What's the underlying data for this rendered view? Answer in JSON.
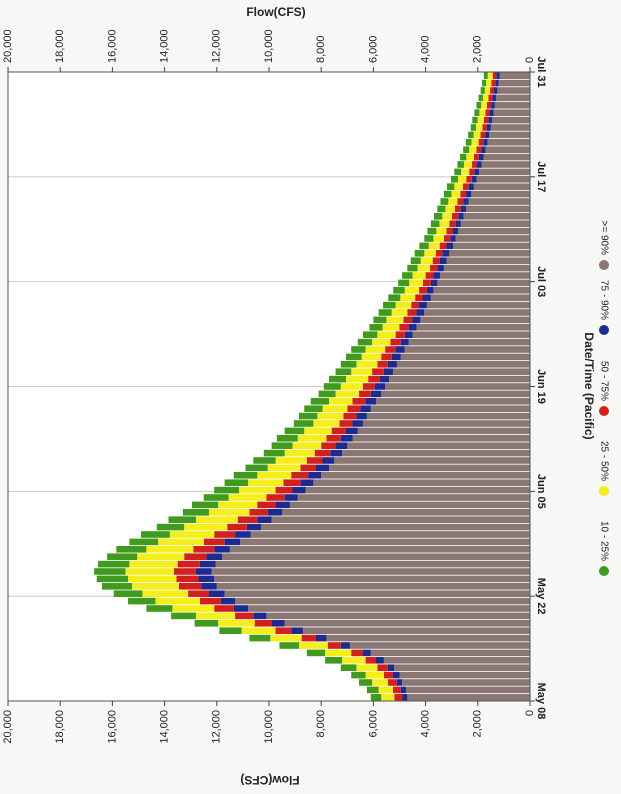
{
  "chart_data": {
    "type": "bar",
    "orientation": "rotated 90 degrees clockwise (scanned page)",
    "stacked": true,
    "title": "",
    "xlabel": "Date/Time (Pacific)",
    "ylabel": "Flow(CFS)",
    "ylabel_top": "Flow(CFS)",
    "ylim": [
      0,
      20000
    ],
    "y_ticks": [
      "0",
      "2,000",
      "4,000",
      "6,000",
      "8,000",
      "10,000",
      "12,000",
      "14,000",
      "16,000",
      "18,000",
      "20,000"
    ],
    "x_ticks": [
      "May 08",
      "May 22",
      "Jun 05",
      "Jun 19",
      "Jul 03",
      "Jul 17",
      "Jul 31"
    ],
    "grid": "vertical lines at date ticks",
    "legend_position": "bottom",
    "base_color": "#8a7672",
    "series": [
      {
        "name": ">= 90%",
        "color": "#8a7672",
        "values": [
          4700,
          4750,
          4900,
          5000,
          5200,
          5600,
          6100,
          6900,
          7800,
          8700,
          9400,
          10100,
          10800,
          11300,
          11700,
          12000,
          12100,
          12200,
          12050,
          11800,
          11500,
          11100,
          10700,
          10300,
          9900,
          9500,
          9200,
          8900,
          8600,
          8300,
          8000,
          7700,
          7500,
          7200,
          7000,
          6800,
          6600,
          6400,
          6250,
          6100,
          5900,
          5700,
          5550,
          5400,
          5250,
          5100,
          4950,
          4800,
          4650,
          4500,
          4350,
          4200,
          4050,
          3950,
          3800,
          3700,
          3550,
          3450,
          3300,
          3200,
          3100,
          2950,
          2850,
          2750,
          2650,
          2550,
          2450,
          2350,
          2250,
          2150,
          2050,
          1950,
          1850,
          1780,
          1700,
          1630,
          1560,
          1500,
          1450,
          1400,
          1350,
          1300,
          1250,
          1200,
          1160
        ]
      },
      {
        "name": "75 - 90%",
        "color": "#1f2a8f",
        "values": [
          200,
          200,
          200,
          250,
          250,
          300,
          300,
          350,
          400,
          450,
          500,
          500,
          550,
          550,
          600,
          600,
          600,
          600,
          600,
          600,
          600,
          600,
          600,
          550,
          550,
          550,
          550,
          500,
          500,
          500,
          500,
          500,
          450,
          450,
          450,
          450,
          450,
          400,
          400,
          400,
          400,
          400,
          400,
          350,
          350,
          350,
          350,
          350,
          300,
          300,
          300,
          300,
          300,
          300,
          300,
          250,
          250,
          250,
          250,
          250,
          250,
          250,
          200,
          200,
          200,
          200,
          200,
          200,
          200,
          200,
          180,
          180,
          180,
          180,
          160,
          160,
          160,
          150,
          150,
          150,
          140,
          140,
          130,
          130,
          130
        ]
      },
      {
        "name": "50 - 75%",
        "color": "#d2201e",
        "values": [
          300,
          300,
          350,
          350,
          400,
          400,
          450,
          500,
          550,
          600,
          650,
          700,
          750,
          800,
          800,
          850,
          850,
          850,
          850,
          850,
          800,
          800,
          800,
          750,
          750,
          700,
          700,
          700,
          650,
          650,
          650,
          600,
          600,
          600,
          550,
          550,
          550,
          500,
          500,
          500,
          500,
          450,
          450,
          450,
          450,
          400,
          400,
          400,
          400,
          350,
          350,
          350,
          350,
          300,
          300,
          300,
          300,
          300,
          280,
          280,
          260,
          260,
          250,
          250,
          240,
          240,
          230,
          230,
          220,
          220,
          210,
          200,
          200,
          190,
          190,
          180,
          180,
          170,
          170,
          160,
          160,
          150,
          150,
          150,
          140
        ]
      },
      {
        "name": "25 - 50%",
        "color": "#f6ee1c",
        "values": [
          500,
          550,
          600,
          700,
          800,
          900,
          1000,
          1100,
          1200,
          1300,
          1400,
          1500,
          1600,
          1700,
          1750,
          1800,
          1850,
          1850,
          1850,
          1800,
          1800,
          1750,
          1700,
          1650,
          1600,
          1550,
          1500,
          1450,
          1400,
          1350,
          1300,
          1250,
          1200,
          1150,
          1100,
          1100,
          1050,
          1000,
          1000,
          950,
          900,
          900,
          850,
          850,
          800,
          800,
          750,
          750,
          700,
          700,
          650,
          650,
          600,
          600,
          570,
          550,
          530,
          500,
          480,
          460,
          440,
          420,
          400,
          390,
          380,
          370,
          360,
          350,
          340,
          330,
          320,
          310,
          300,
          290,
          280,
          270,
          260,
          250,
          240,
          230,
          220,
          210,
          200,
          200,
          190
        ]
      },
      {
        "name": "10 - 25%",
        "color": "#3f9a1d",
        "values": [
          400,
          450,
          500,
          550,
          600,
          650,
          700,
          750,
          800,
          850,
          900,
          950,
          1000,
          1050,
          1100,
          1150,
          1200,
          1200,
          1200,
          1150,
          1150,
          1100,
          1100,
          1050,
          1050,
          1000,
          1000,
          950,
          950,
          900,
          900,
          850,
          850,
          800,
          800,
          800,
          750,
          750,
          700,
          700,
          700,
          650,
          650,
          650,
          600,
          600,
          600,
          550,
          550,
          550,
          500,
          500,
          500,
          480,
          460,
          440,
          420,
          400,
          390,
          380,
          370,
          360,
          350,
          340,
          330,
          320,
          310,
          300,
          290,
          280,
          270,
          260,
          250,
          240,
          230,
          220,
          210,
          200,
          200,
          190,
          180,
          170,
          160,
          160,
          150
        ]
      }
    ]
  }
}
